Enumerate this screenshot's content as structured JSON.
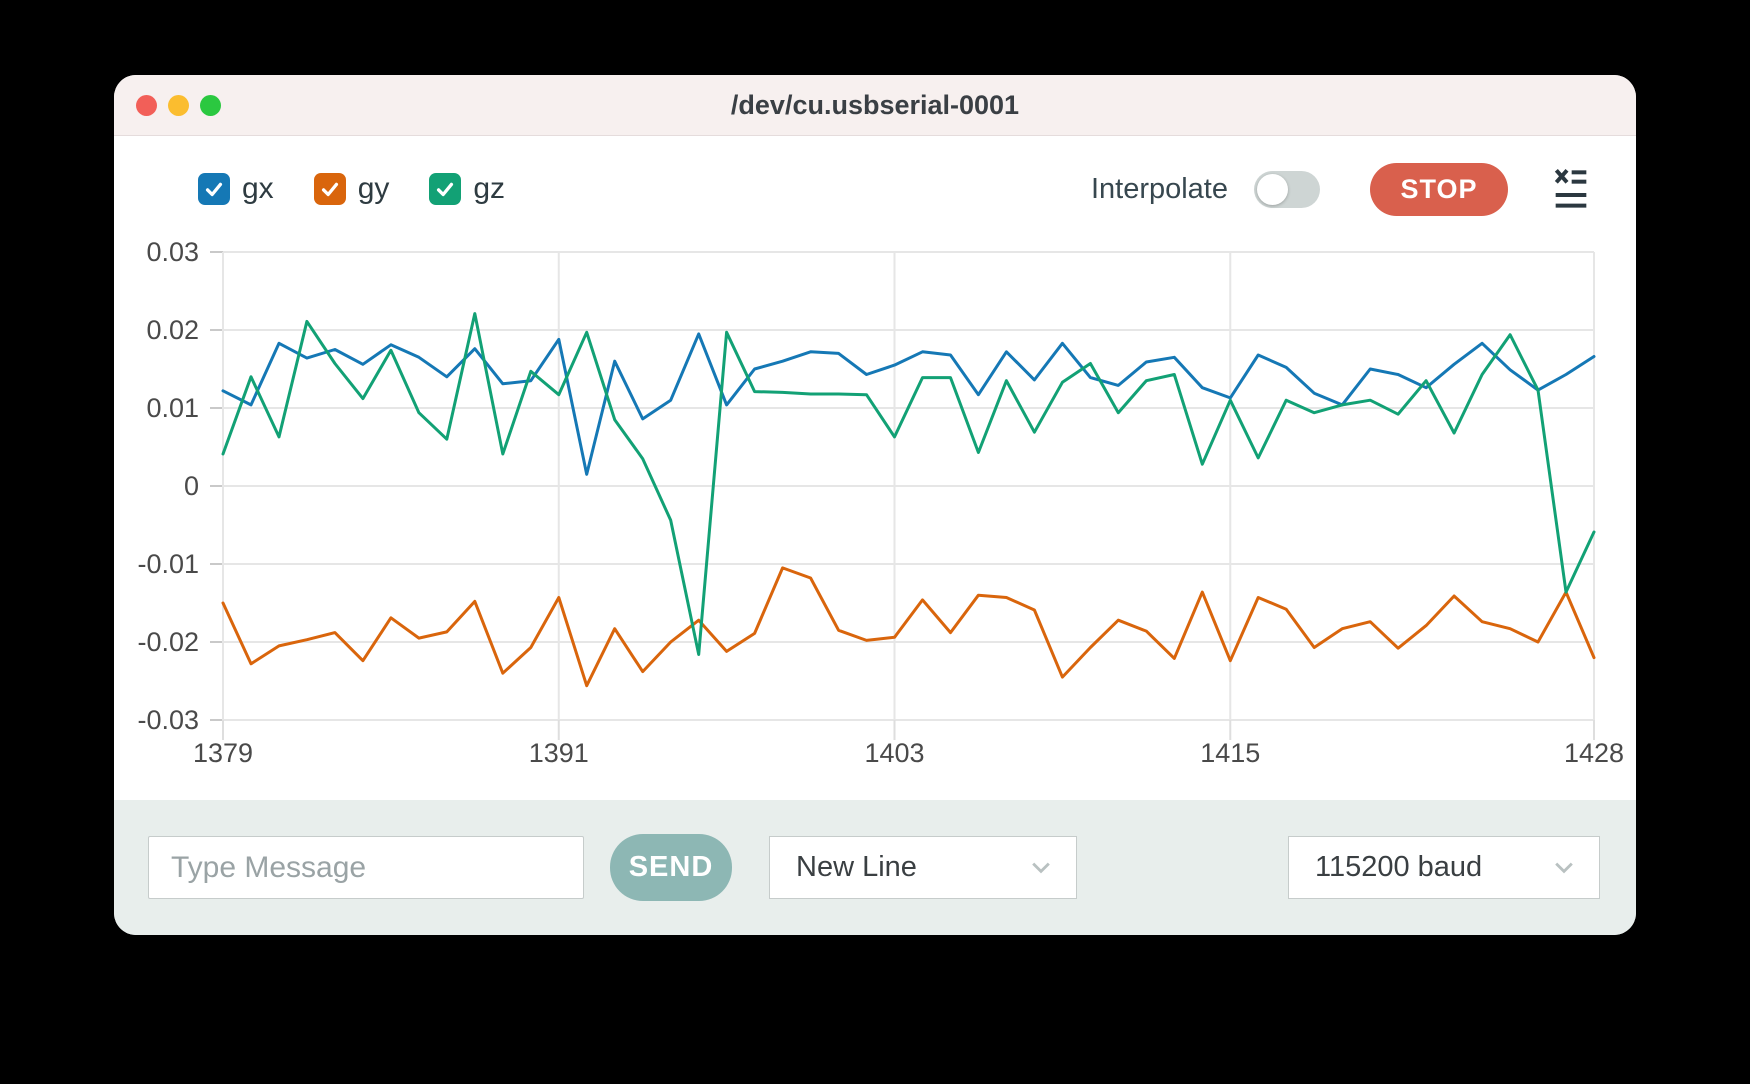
{
  "window": {
    "title": "/dev/cu.usbserial-0001"
  },
  "controls": {
    "interpolate_label": "Interpolate",
    "interpolate_on": false,
    "stop_label": "STOP",
    "clear_icon": "clear-console-icon"
  },
  "legend": [
    {
      "label": "gx",
      "checked": true
    },
    {
      "label": "gy",
      "checked": true
    },
    {
      "label": "gz",
      "checked": true
    }
  ],
  "bottom_bar": {
    "message_placeholder": "Type Message",
    "send_label": "SEND",
    "line_ending": "New Line",
    "baud": "115200 baud"
  },
  "colors": {
    "stop_button": "#d9604d",
    "send_button": "#8db7b4",
    "toggle_track": "#ced5d4",
    "titlebar_bg": "#f7f0ef",
    "bottom_bar_bg": "#e8eeec"
  },
  "chart_data": {
    "type": "line",
    "title": "",
    "xlabel": "",
    "ylabel": "",
    "xlim": [
      1379,
      1428
    ],
    "ylim": [
      -0.03,
      0.03
    ],
    "grid": true,
    "legend_position": "top-left",
    "xticks": [
      1379,
      1391,
      1403,
      1415,
      1428
    ],
    "ytick_labels": [
      "0.03",
      "0.02",
      "0.01",
      "0",
      "-0.01",
      "-0.02",
      "-0.03"
    ],
    "x": [
      1379,
      1380,
      1381,
      1382,
      1383,
      1384,
      1385,
      1386,
      1387,
      1388,
      1389,
      1390,
      1391,
      1392,
      1393,
      1394,
      1395,
      1396,
      1397,
      1398,
      1399,
      1400,
      1401,
      1402,
      1403,
      1404,
      1405,
      1406,
      1407,
      1408,
      1409,
      1410,
      1411,
      1412,
      1413,
      1414,
      1415,
      1416,
      1417,
      1418,
      1419,
      1420,
      1421,
      1422,
      1423,
      1424,
      1425,
      1426,
      1427,
      1428
    ],
    "series": [
      {
        "name": "gx",
        "color": "#1578b5",
        "values": [
          0.0122,
          0.0104,
          0.0183,
          0.0164,
          0.0175,
          0.0156,
          0.0181,
          0.0165,
          0.014,
          0.0176,
          0.0131,
          0.0135,
          0.0188,
          0.0015,
          0.016,
          0.0086,
          0.011,
          0.0195,
          0.0104,
          0.015,
          0.016,
          0.0172,
          0.017,
          0.0143,
          0.0155,
          0.0172,
          0.0168,
          0.0117,
          0.0172,
          0.0136,
          0.0183,
          0.0139,
          0.0129,
          0.0159,
          0.0165,
          0.0126,
          0.0113,
          0.0168,
          0.0152,
          0.0119,
          0.0104,
          0.015,
          0.0143,
          0.0126,
          0.0156,
          0.0183,
          0.0149,
          0.0123,
          0.0143,
          0.0166
        ]
      },
      {
        "name": "gy",
        "color": "#d9650c",
        "values": [
          -0.015,
          -0.0228,
          -0.0205,
          -0.0197,
          -0.0188,
          -0.0224,
          -0.0169,
          -0.0195,
          -0.0187,
          -0.0148,
          -0.024,
          -0.0207,
          -0.0143,
          -0.0256,
          -0.0183,
          -0.0238,
          -0.02,
          -0.0172,
          -0.0212,
          -0.0189,
          -0.0105,
          -0.0118,
          -0.0185,
          -0.0198,
          -0.0194,
          -0.0146,
          -0.0188,
          -0.014,
          -0.0143,
          -0.0159,
          -0.0245,
          -0.0207,
          -0.0172,
          -0.0186,
          -0.0221,
          -0.0136,
          -0.0224,
          -0.0143,
          -0.0158,
          -0.0207,
          -0.0183,
          -0.0174,
          -0.0208,
          -0.0179,
          -0.0141,
          -0.0174,
          -0.0183,
          -0.02,
          -0.0136,
          -0.022
        ]
      },
      {
        "name": "gz",
        "color": "#12a175",
        "values": [
          0.0041,
          0.014,
          0.0063,
          0.0211,
          0.0157,
          0.0112,
          0.0174,
          0.0094,
          0.006,
          0.0221,
          0.0041,
          0.0147,
          0.0117,
          0.0197,
          0.0085,
          0.0035,
          -0.0044,
          -0.0216,
          0.0197,
          0.0121,
          0.012,
          0.0118,
          0.0118,
          0.0117,
          0.0063,
          0.0139,
          0.0139,
          0.0043,
          0.0135,
          0.0069,
          0.0133,
          0.0157,
          0.0094,
          0.0135,
          0.0143,
          0.0028,
          0.011,
          0.0036,
          0.011,
          0.0094,
          0.0104,
          0.011,
          0.0092,
          0.0135,
          0.0068,
          0.0143,
          0.0194,
          0.0123,
          -0.0136,
          -0.0059
        ]
      }
    ]
  }
}
